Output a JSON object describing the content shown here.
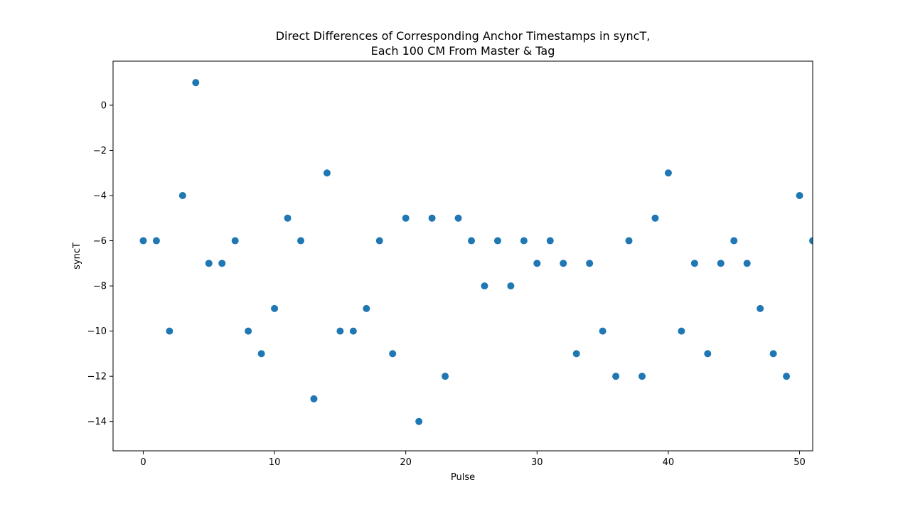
{
  "chart_data": {
    "type": "scatter",
    "title": [
      "Direct Differences of Corresponding Anchor Timestamps in syncT,",
      "Each 100 CM From Master & Tag"
    ],
    "xlabel": "Pulse",
    "ylabel": "syncT",
    "xlim": [
      -2.3,
      51
    ],
    "ylim": [
      -15.3,
      1.95
    ],
    "xticks": [
      0,
      10,
      20,
      30,
      40,
      50
    ],
    "yticks": [
      0,
      -2,
      -4,
      -6,
      -8,
      -10,
      -12,
      -14
    ],
    "xtick_labels": [
      "0",
      "10",
      "20",
      "30",
      "40",
      "50"
    ],
    "ytick_labels": [
      "0",
      "−2",
      "−4",
      "−6",
      "−8",
      "−10",
      "−12",
      "−14"
    ],
    "grid": false,
    "marker_color": "#1f77b4",
    "x": [
      0,
      1,
      2,
      3,
      4,
      5,
      6,
      7,
      8,
      9,
      10,
      11,
      12,
      13,
      14,
      15,
      16,
      17,
      18,
      19,
      20,
      21,
      22,
      23,
      24,
      25,
      26,
      27,
      28,
      29,
      30,
      31,
      32,
      33,
      34,
      35,
      36,
      37,
      38,
      39,
      40,
      41,
      42,
      43,
      44,
      45,
      46,
      47,
      48,
      49,
      50,
      51
    ],
    "y": [
      -6,
      -6,
      -10,
      -4,
      1,
      -7,
      -7,
      -6,
      -10,
      -11,
      -9,
      -5,
      -6,
      -13,
      -3,
      -10,
      -10,
      -9,
      -6,
      -11,
      -5,
      -14,
      -5,
      -12,
      -5,
      -6,
      -8,
      -6,
      -8,
      -6,
      -7,
      -6,
      -7,
      -11,
      -7,
      -10,
      -12,
      -6,
      -12,
      -5,
      -3,
      -10,
      -7,
      -11,
      -7,
      -6,
      -7,
      -9,
      -11,
      -12,
      -4,
      -6
    ]
  }
}
